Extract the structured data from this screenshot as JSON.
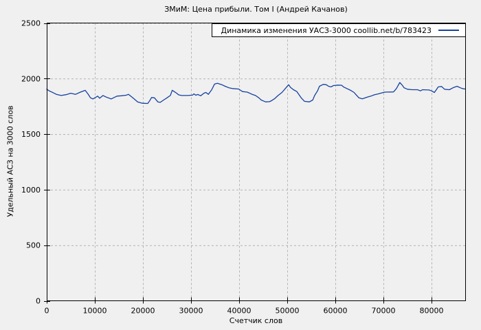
{
  "chart_data": {
    "type": "line",
    "title": "ЗМиМ: Цена прибыли. Том I (Андрей Качанов)",
    "xlabel": "Счетчик слов",
    "ylabel": "Удельный АСЗ на 3000 слов",
    "legend_label": "Динамика изменения УАСЗ-3000 coollib.net/b/783423",
    "legend_position": "top-right-inside",
    "grid": true,
    "xlim": [
      0,
      87000
    ],
    "ylim": [
      0,
      2500
    ],
    "x_ticks": [
      0,
      10000,
      20000,
      30000,
      40000,
      50000,
      60000,
      70000,
      80000
    ],
    "y_ticks": [
      0,
      500,
      1000,
      1500,
      2000,
      2500
    ],
    "colors": {
      "background": "#f0f0f0",
      "plot_background": "#f0f0f0",
      "border": "#000000",
      "grid": "#b3b3b3",
      "line": "#1440a0",
      "legend_background": "#ffffff",
      "text": "#000000"
    },
    "series": [
      {
        "name": "Динамика изменения УАСЗ-3000 coollib.net/b/783423",
        "x": [
          0,
          500,
          1000,
          2000,
          3000,
          4000,
          5000,
          6000,
          7000,
          8000,
          8600,
          9100,
          9600,
          10600,
          11000,
          11700,
          12400,
          13400,
          14600,
          15500,
          16500,
          17000,
          17900,
          18900,
          19900,
          21000,
          21400,
          21800,
          22400,
          23100,
          23600,
          24300,
          25000,
          25700,
          26100,
          27000,
          27400,
          28000,
          29300,
          30300,
          30600,
          31000,
          31400,
          32000,
          32700,
          33100,
          33600,
          34300,
          34900,
          35500,
          36400,
          37100,
          37900,
          38600,
          39900,
          40700,
          41700,
          42700,
          43400,
          44100,
          44600,
          45500,
          46300,
          46700,
          47400,
          48100,
          48900,
          49600,
          50300,
          50700,
          51300,
          52000,
          52400,
          52900,
          53600,
          54600,
          55300,
          55700,
          56300,
          56700,
          57500,
          58100,
          58600,
          59100,
          59600,
          60500,
          61300,
          61700,
          62400,
          63100,
          63900,
          64300,
          64900,
          65600,
          66700,
          67400,
          68100,
          68900,
          69600,
          70300,
          72100,
          72700,
          73400,
          73900,
          74300,
          75000,
          76000,
          77100,
          77700,
          78100,
          79500,
          80000,
          80600,
          81400,
          82100,
          82700,
          83700,
          84600,
          85300,
          86000,
          86400,
          87000
        ],
        "y": [
          1905,
          1890,
          1880,
          1858,
          1848,
          1855,
          1868,
          1858,
          1878,
          1894,
          1860,
          1827,
          1817,
          1842,
          1823,
          1848,
          1833,
          1817,
          1842,
          1845,
          1850,
          1858,
          1827,
          1790,
          1778,
          1776,
          1800,
          1830,
          1827,
          1790,
          1786,
          1807,
          1827,
          1848,
          1895,
          1869,
          1854,
          1848,
          1848,
          1851,
          1862,
          1850,
          1857,
          1845,
          1869,
          1875,
          1858,
          1900,
          1951,
          1958,
          1945,
          1931,
          1917,
          1910,
          1906,
          1883,
          1878,
          1858,
          1848,
          1827,
          1807,
          1790,
          1792,
          1800,
          1820,
          1848,
          1875,
          1910,
          1945,
          1920,
          1900,
          1883,
          1858,
          1827,
          1795,
          1790,
          1807,
          1848,
          1889,
          1931,
          1948,
          1945,
          1931,
          1925,
          1937,
          1941,
          1940,
          1925,
          1910,
          1896,
          1875,
          1855,
          1827,
          1818,
          1834,
          1842,
          1854,
          1862,
          1870,
          1878,
          1880,
          1910,
          1965,
          1941,
          1917,
          1904,
          1900,
          1900,
          1889,
          1900,
          1897,
          1889,
          1875,
          1925,
          1929,
          1904,
          1900,
          1920,
          1931,
          1917,
          1910,
          1906
        ]
      }
    ]
  }
}
